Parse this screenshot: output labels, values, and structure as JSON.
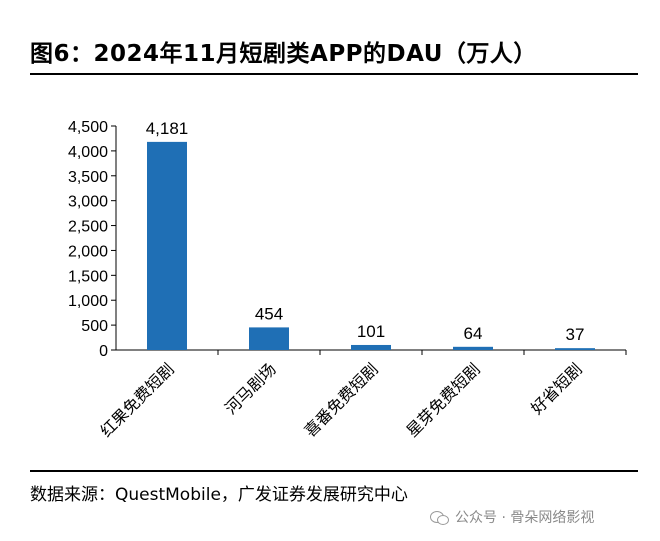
{
  "header": {
    "title": "图6：2024年11月短剧类APP的DAU（万人）"
  },
  "chart_data": {
    "type": "bar",
    "categories": [
      "红果免费短剧",
      "河马剧场",
      "喜番免费短剧",
      "星芽免费短剧",
      "好省短剧"
    ],
    "values": [
      4181,
      454,
      101,
      64,
      37
    ],
    "data_labels": [
      "4,181",
      "454",
      "101",
      "64",
      "37"
    ],
    "yticks": [
      "0",
      "500",
      "1,000",
      "1,500",
      "2,000",
      "2,500",
      "3,000",
      "3,500",
      "4,000",
      "4,500"
    ],
    "ylim": [
      0,
      4500
    ],
    "bar_color": "#1f6fb5",
    "grid": false,
    "legend": "none"
  },
  "footer": {
    "source": "数据来源：QuestMobile，广发证券发展研究中心",
    "watermark": "公众号 · 骨朵网络影视"
  }
}
